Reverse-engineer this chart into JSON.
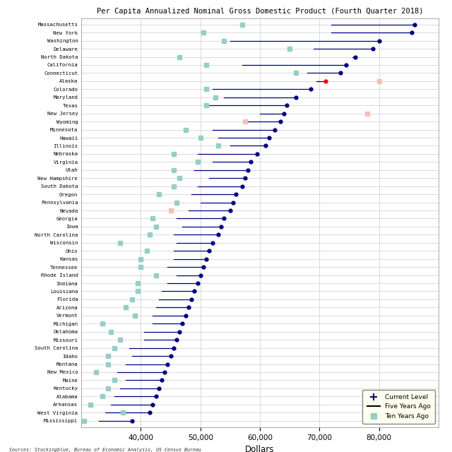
{
  "title": "Per Capita Annualized Nominal Gross Domestic Product (Fourth Quarter 2018)",
  "xlabel": "Dollars",
  "source": "Sources: Stockingblue, Bureau of Economic Analysis, US Census Bureau",
  "states": [
    "Massachusetts",
    "New York",
    "Washington",
    "Delaware",
    "North Dakota",
    "California",
    "Connecticut",
    "Alaska",
    "Colorado",
    "Maryland",
    "Texas",
    "New Jersey",
    "Wyoming",
    "Minnesota",
    "Hawaii",
    "Illinois",
    "Nebraska",
    "Virginia",
    "Utah",
    "New Hampshire",
    "South Dakota",
    "Oregon",
    "Pennsylvania",
    "Nevada",
    "Georgia",
    "Iowa",
    "North Carolina",
    "Wisconsin",
    "Ohio",
    "Kansas",
    "Tennessee",
    "Rhode Island",
    "Indiana",
    "Louisiana",
    "Florida",
    "Arizona",
    "Vermont",
    "Michigan",
    "Oklahoma",
    "Missouri",
    "South Carolina",
    "Idaho",
    "Montana",
    "New Mexico",
    "Maine",
    "Kentucky",
    "Alabama",
    "Arkansas",
    "West Virginia",
    "Mississippi"
  ],
  "current": [
    86000,
    85500,
    80000,
    79000,
    76000,
    74500,
    73500,
    71000,
    68500,
    66000,
    64500,
    64000,
    63500,
    62500,
    61500,
    61000,
    59500,
    58500,
    58000,
    57500,
    57000,
    56000,
    55500,
    55000,
    54000,
    53500,
    53000,
    52000,
    51500,
    51000,
    50500,
    50000,
    49500,
    49000,
    48500,
    48000,
    47500,
    47000,
    46500,
    46000,
    45500,
    45000,
    44500,
    44000,
    43500,
    43000,
    42500,
    42000,
    41500,
    38500
  ],
  "five_years_start": [
    72000,
    72000,
    55000,
    69000,
    75500,
    57000,
    68000,
    69500,
    52000,
    54000,
    51500,
    60000,
    58000,
    52000,
    53000,
    55000,
    49500,
    52000,
    49000,
    51500,
    49500,
    48500,
    50000,
    48000,
    46000,
    47000,
    45500,
    46000,
    45500,
    45500,
    44500,
    46000,
    44500,
    43500,
    43000,
    42500,
    42000,
    42000,
    40500,
    40500,
    38000,
    38500,
    37500,
    36000,
    37500,
    36500,
    35500,
    35000,
    34000,
    33000
  ],
  "ten_years": [
    57000,
    50500,
    54000,
    65000,
    46500,
    51000,
    66000,
    80000,
    51000,
    52500,
    51000,
    78000,
    57500,
    47500,
    50000,
    53000,
    45500,
    49500,
    45500,
    46500,
    45500,
    43000,
    46000,
    45000,
    42000,
    42500,
    41500,
    36500,
    41000,
    40000,
    40000,
    42500,
    39500,
    39500,
    38500,
    37500,
    39000,
    33500,
    35000,
    36500,
    35500,
    34500,
    34500,
    32500,
    35500,
    34500,
    33500,
    31500,
    37000,
    30500
  ],
  "ten_years_pink_indices": [
    7,
    11,
    12,
    23
  ],
  "current_color_default": "#000080",
  "current_color_alaska": "#FF0000",
  "line_color": "#000080",
  "square_color_teal": "#96CEC8",
  "square_color_pink": "#F4C0B8",
  "xlim": [
    30000,
    90000
  ],
  "background_color": "#FFFFFF",
  "grid_color": "#CCCCCC"
}
